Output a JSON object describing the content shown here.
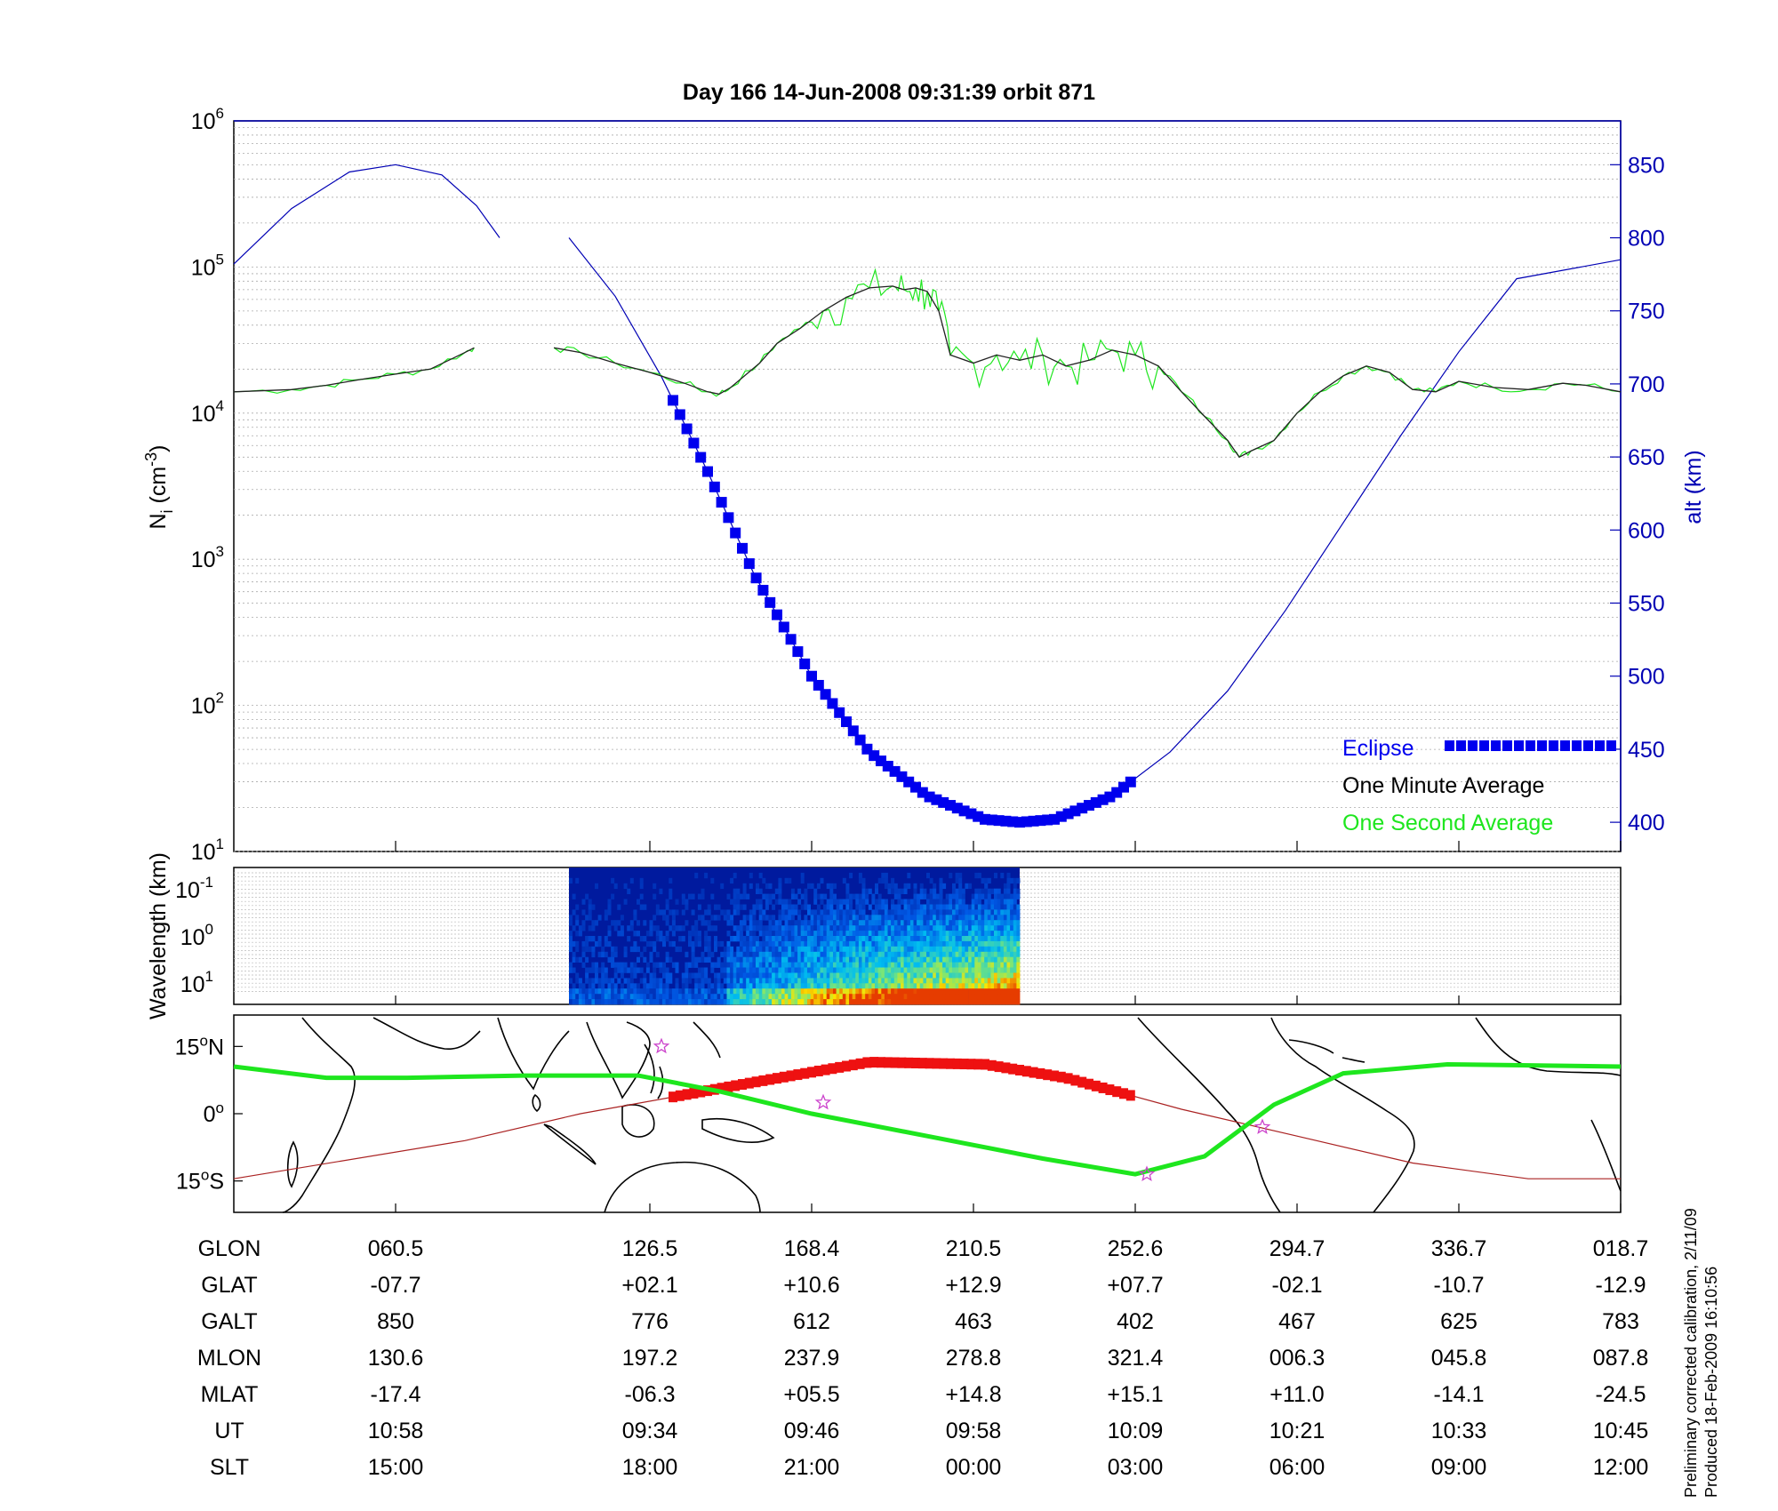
{
  "title": "Day 166  14-Jun-2008 09:31:39   orbit 871",
  "colors": {
    "alt": "#0000b4",
    "eclipse": "#0000ee",
    "minute": "#222222",
    "second": "#1ee61e",
    "track": "#1ee61e",
    "subsolar": "#aa2222",
    "eclipse_track": "#ee1111",
    "star": "#cc44cc"
  },
  "legend": {
    "eclipse": "Eclipse",
    "minute": "One Minute Average",
    "second": "One Second Average"
  },
  "footer": {
    "line1": "Preliminary corrected calibration, 2/11/09",
    "line2": "Produced 18-Feb-2009 16:10:56"
  },
  "table": {
    "row_labels": [
      "GLON",
      "GLAT",
      "GALT",
      "MLON",
      "MLAT",
      "UT",
      "SLT"
    ],
    "columns": [
      [
        "060.5",
        "-07.7",
        "850",
        "130.6",
        "-17.4",
        "10:58",
        "15:00"
      ],
      [
        "126.5",
        "+02.1",
        "776",
        "197.2",
        "-06.3",
        "09:34",
        "18:00"
      ],
      [
        "168.4",
        "+10.6",
        "612",
        "237.9",
        "+05.5",
        "09:46",
        "21:00"
      ],
      [
        "210.5",
        "+12.9",
        "463",
        "278.8",
        "+14.8",
        "09:58",
        "00:00"
      ],
      [
        "252.6",
        "+07.7",
        "402",
        "321.4",
        "+15.1",
        "10:09",
        "03:00"
      ],
      [
        "294.7",
        "-02.1",
        "467",
        "006.3",
        "+11.0",
        "10:21",
        "06:00"
      ],
      [
        "336.7",
        "-10.7",
        "625",
        "045.8",
        "-14.1",
        "10:33",
        "09:00"
      ],
      [
        "018.7",
        "-12.9",
        "783",
        "087.8",
        "-24.5",
        "10:45",
        "12:00"
      ]
    ]
  },
  "chart_data": [
    {
      "type": "line",
      "name": "ion-density-altitude",
      "title": "Day 166  14-Jun-2008 09:31:39   orbit 871",
      "ylabel_left": {
        "base": "N",
        "sub": "i",
        "unit_pre": " (cm",
        "unit_sup": "-3",
        "unit_post": ")"
      },
      "ylabel_right": "alt (km)",
      "y_log_scale": true,
      "ylim_left": [
        10,
        1000000
      ],
      "yticks_left": [
        {
          "base": "10",
          "exp": "1"
        },
        {
          "base": "10",
          "exp": "2"
        },
        {
          "base": "10",
          "exp": "3"
        },
        {
          "base": "10",
          "exp": "4"
        },
        {
          "base": "10",
          "exp": "5"
        },
        {
          "base": "10",
          "exp": "6"
        }
      ],
      "ylim_right": [
        380,
        880
      ],
      "yticks_right": [
        "400",
        "450",
        "500",
        "550",
        "600",
        "650",
        "700",
        "750",
        "800",
        "850"
      ],
      "x_ticks_glon": [
        60.5,
        126.5,
        168.4,
        210.5,
        252.6,
        294.7,
        336.7,
        18.7
      ],
      "grid": true,
      "legend_position": "bottom-right",
      "series": [
        {
          "name": "One Minute Average",
          "axis": "left",
          "points": [
            [
              0,
              14000
            ],
            [
              0.05,
              14500
            ],
            [
              0.08,
              15500
            ],
            [
              0.11,
              17000
            ],
            [
              0.14,
              18500
            ],
            [
              0.17,
              20000
            ],
            [
              0.2,
              26000
            ],
            [
              0.208,
              28000
            ],
            [
              null,
              null
            ],
            [
              0.277,
              28000
            ],
            [
              0.3,
              26000
            ],
            [
              0.33,
              22000
            ],
            [
              0.36,
              19000
            ],
            [
              0.39,
              16000
            ],
            [
              0.41,
              14000
            ],
            [
              0.42,
              13500
            ],
            [
              0.43,
              15000
            ],
            [
              0.455,
              22000
            ],
            [
              0.47,
              30000
            ],
            [
              0.49,
              38000
            ],
            [
              0.51,
              50000
            ],
            [
              0.53,
              62000
            ],
            [
              0.55,
              72000
            ],
            [
              0.57,
              74000
            ],
            [
              0.58,
              70000
            ],
            [
              0.59,
              72000
            ],
            [
              0.6,
              68000
            ],
            [
              0.61,
              50000
            ],
            [
              0.62,
              25000
            ],
            [
              0.64,
              22000
            ],
            [
              0.66,
              25000
            ],
            [
              0.68,
              23000
            ],
            [
              0.7,
              25000
            ],
            [
              0.72,
              21000
            ],
            [
              0.74,
              23000
            ],
            [
              0.76,
              27000
            ],
            [
              0.78,
              25000
            ],
            [
              0.8,
              21000
            ],
            [
              0.82,
              14000
            ],
            [
              0.84,
              9500
            ],
            [
              0.86,
              6500
            ],
            [
              0.87,
              5000
            ],
            [
              0.88,
              5500
            ],
            [
              0.9,
              6500
            ],
            [
              0.92,
              10000
            ],
            [
              0.94,
              14000
            ],
            [
              0.96,
              18000
            ],
            [
              0.98,
              21000
            ],
            [
              1.0,
              19000
            ],
            [
              1.02,
              14500
            ],
            [
              1.04,
              14000
            ],
            [
              1.06,
              16500
            ],
            [
              1.09,
              15000
            ],
            [
              1.12,
              14500
            ],
            [
              1.15,
              16000
            ],
            [
              1.17,
              15500
            ],
            [
              1.2,
              14000
            ]
          ]
        },
        {
          "name": "alt (km)",
          "axis": "right",
          "points": [
            [
              0,
              782
            ],
            [
              0.05,
              820
            ],
            [
              0.1,
              845
            ],
            [
              0.14,
              850
            ],
            [
              0.18,
              843
            ],
            [
              0.21,
              822
            ],
            [
              0.23,
              800
            ],
            [
              null,
              null
            ],
            [
              0.29,
              800
            ],
            [
              0.33,
              760
            ],
            [
              0.37,
              705
            ],
            [
              0.41,
              640
            ],
            [
              0.45,
              570
            ],
            [
              0.5,
              500
            ],
            [
              0.55,
              448
            ],
            [
              0.6,
              418
            ],
            [
              0.65,
              402
            ],
            [
              0.68,
              400
            ],
            [
              0.71,
              402
            ],
            [
              0.76,
              418
            ],
            [
              0.81,
              448
            ],
            [
              0.86,
              490
            ],
            [
              0.91,
              545
            ],
            [
              0.96,
              605
            ],
            [
              1.01,
              665
            ],
            [
              1.06,
              722
            ],
            [
              1.11,
              772
            ],
            [
              1.2,
              785
            ]
          ]
        }
      ],
      "eclipse_x_range": [
        0.38,
        0.78
      ]
    },
    {
      "type": "heatmap",
      "name": "wavelength-spectrogram",
      "ylabel": "Wavelength (km)",
      "yticks": [
        {
          "base": "10",
          "exp": "-1"
        },
        {
          "base": "10",
          "exp": "0"
        },
        {
          "base": "10",
          "exp": "1"
        }
      ],
      "x_range": [
        0.29,
        0.68
      ]
    },
    {
      "type": "line",
      "name": "ground-track-map",
      "yticks": [
        {
          "deg": "15",
          "sup": "o",
          "hemi": "N"
        },
        {
          "deg": "0",
          "sup": "o",
          "hemi": ""
        },
        {
          "deg": "15",
          "sup": "o",
          "hemi": "S"
        }
      ],
      "series": [
        {
          "name": "ground track",
          "points": [
            [
              0,
              10.5
            ],
            [
              0.08,
              8
            ],
            [
              0.15,
              8
            ],
            [
              0.25,
              8.5
            ],
            [
              0.35,
              8.5
            ],
            [
              0.42,
              5
            ],
            [
              0.5,
              0
            ],
            [
              0.6,
              -5
            ],
            [
              0.7,
              -10
            ],
            [
              0.78,
              -13.5
            ],
            [
              0.84,
              -9.5
            ],
            [
              0.9,
              2
            ],
            [
              0.96,
              9
            ],
            [
              1.05,
              11
            ],
            [
              1.2,
              10.5
            ]
          ]
        },
        {
          "name": "subsolar",
          "points": [
            [
              0,
              -14.5
            ],
            [
              0.2,
              -6
            ],
            [
              0.3,
              0
            ],
            [
              0.45,
              7
            ],
            [
              0.55,
              11.5
            ],
            [
              0.65,
              11
            ],
            [
              0.72,
              8
            ],
            [
              0.82,
              1
            ],
            [
              0.92,
              -5
            ],
            [
              1.02,
              -11
            ],
            [
              1.12,
              -14.5
            ],
            [
              1.2,
              -14.5
            ]
          ]
        }
      ],
      "eclipse_x_range": [
        0.38,
        0.78
      ],
      "star_markers": [
        [
          0.37,
          15
        ],
        [
          0.51,
          2.5
        ],
        [
          0.79,
          -13.5
        ],
        [
          0.89,
          -3
        ]
      ]
    }
  ]
}
